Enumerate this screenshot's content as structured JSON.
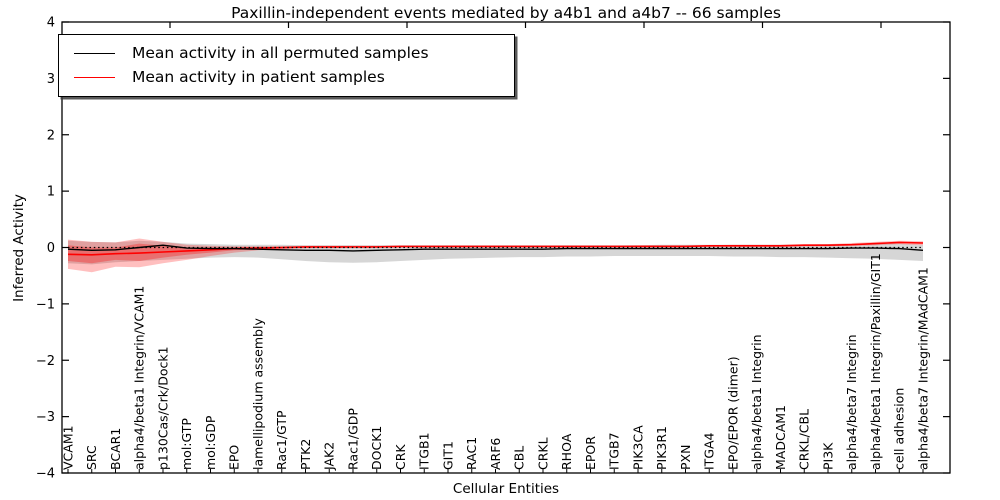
{
  "figure": {
    "title": "Paxillin-independent events mediated by a4b1 and a4b7 -- 66 samples",
    "xlabel": "Cellular Entities",
    "ylabel": "Inferred Activity"
  },
  "legend": {
    "items": [
      {
        "label": "Mean activity in all permuted samples",
        "color": "#000000"
      },
      {
        "label": "Mean activity in patient samples",
        "color": "#ff0000"
      }
    ]
  },
  "chart_data": {
    "type": "line",
    "title": "Paxillin-independent events mediated by a4b1 and a4b7 -- 66 samples",
    "xlabel": "Cellular Entities",
    "ylabel": "Inferred Activity",
    "ylim": [
      -4,
      4
    ],
    "yticks": [
      -4,
      -3,
      -2,
      -1,
      0,
      1,
      2,
      3,
      4
    ],
    "grid": false,
    "legend_position": "upper left",
    "baseline": 0,
    "baseline_style": "dotted",
    "categories": [
      "VCAM1",
      "SRC",
      "BCAR1",
      "alpha4/beta1 Integrin/VCAM1",
      "p130Cas/Crk/Dock1",
      "mol:GTP",
      "mol:GDP",
      "EPO",
      "lamellipodium assembly",
      "Rac1/GTP",
      "PTK2",
      "JAK2",
      "Rac1/GDP",
      "DOCK1",
      "CRK",
      "ITGB1",
      "GIT1",
      "RAC1",
      "ARF6",
      "CBL",
      "CRKL",
      "RHOA",
      "EPOR",
      "ITGB7",
      "PIK3CA",
      "PIK3R1",
      "PXN",
      "ITGA4",
      "EPO/EPOR (dimer)",
      "alpha4/beta1 Integrin",
      "MADCAM1",
      "CRKL/CBL",
      "PI3K",
      "alpha4/beta7 Integrin",
      "alpha4/beta1 Integrin/Paxillin/GIT1",
      "cell adhesion",
      "alpha4/beta7 Integrin/MAdCAM1"
    ],
    "series": [
      {
        "name": "Mean activity in all permuted samples",
        "color": "#000000",
        "style": "solid",
        "values": [
          -0.03,
          -0.05,
          -0.04,
          0.0,
          0.04,
          -0.01,
          -0.02,
          -0.02,
          -0.03,
          -0.04,
          -0.05,
          -0.05,
          -0.06,
          -0.05,
          -0.04,
          -0.03,
          -0.03,
          -0.03,
          -0.03,
          -0.03,
          -0.03,
          -0.02,
          -0.02,
          -0.02,
          -0.02,
          -0.02,
          -0.02,
          -0.02,
          -0.02,
          -0.02,
          -0.02,
          -0.02,
          -0.02,
          -0.01,
          -0.01,
          -0.02,
          -0.05
        ]
      },
      {
        "name": "Mean activity in patient samples",
        "color": "#ff0000",
        "style": "solid",
        "values": [
          -0.12,
          -0.13,
          -0.11,
          -0.1,
          -0.08,
          -0.06,
          -0.04,
          -0.02,
          -0.01,
          0.0,
          0.01,
          0.01,
          0.01,
          0.01,
          0.02,
          0.02,
          0.02,
          0.02,
          0.02,
          0.02,
          0.02,
          0.02,
          0.02,
          0.02,
          0.02,
          0.02,
          0.02,
          0.03,
          0.03,
          0.03,
          0.03,
          0.04,
          0.04,
          0.05,
          0.07,
          0.09,
          0.08
        ]
      }
    ],
    "bands": [
      {
        "name": "permuted-samples-range",
        "color": "#777777",
        "opacity": 0.3,
        "hi": [
          0.12,
          0.1,
          0.09,
          0.12,
          0.1,
          0.07,
          0.06,
          0.05,
          0.05,
          0.05,
          0.04,
          0.04,
          0.04,
          0.04,
          0.04,
          0.04,
          0.04,
          0.04,
          0.04,
          0.04,
          0.04,
          0.04,
          0.04,
          0.04,
          0.04,
          0.05,
          0.05,
          0.05,
          0.05,
          0.05,
          0.05,
          0.05,
          0.06,
          0.06,
          0.08,
          0.07,
          0.05
        ],
        "lo": [
          -0.28,
          -0.3,
          -0.26,
          -0.24,
          -0.22,
          -0.2,
          -0.18,
          -0.17,
          -0.18,
          -0.21,
          -0.24,
          -0.26,
          -0.27,
          -0.26,
          -0.24,
          -0.22,
          -0.2,
          -0.19,
          -0.18,
          -0.17,
          -0.17,
          -0.16,
          -0.16,
          -0.15,
          -0.15,
          -0.15,
          -0.15,
          -0.15,
          -0.16,
          -0.16,
          -0.17,
          -0.17,
          -0.18,
          -0.19,
          -0.2,
          -0.22,
          -0.24
        ]
      },
      {
        "name": "patient-samples-range-outer",
        "color": "#ff0000",
        "opacity": 0.25,
        "hi": [
          0.14,
          0.1,
          0.09,
          0.16,
          0.1,
          0.05,
          0.03,
          0.02,
          0.02,
          0.02,
          0.03,
          0.03,
          0.03,
          0.03,
          0.03,
          0.03,
          0.03,
          0.03,
          0.03,
          0.03,
          0.03,
          0.03,
          0.03,
          0.03,
          0.04,
          0.04,
          0.04,
          0.04,
          0.05,
          0.05,
          0.05,
          0.06,
          0.06,
          0.08,
          0.1,
          0.12,
          0.11
        ],
        "lo": [
          -0.38,
          -0.44,
          -0.34,
          -0.35,
          -0.28,
          -0.22,
          -0.15,
          -0.09,
          -0.05,
          -0.03,
          -0.01,
          -0.01,
          0.0,
          0.0,
          0.0,
          0.0,
          0.0,
          0.0,
          0.0,
          0.0,
          0.0,
          0.0,
          0.01,
          0.01,
          0.01,
          0.01,
          0.01,
          0.01,
          0.01,
          0.01,
          0.01,
          0.02,
          0.02,
          0.03,
          0.04,
          0.06,
          0.04
        ]
      },
      {
        "name": "patient-samples-range-inner",
        "color": "#ff0000",
        "opacity": 0.3,
        "hi": [
          0.04,
          0.0,
          0.0,
          0.07,
          0.03,
          0.0,
          0.0,
          0.0,
          0.01,
          0.01,
          0.02,
          0.02,
          0.02,
          0.02,
          0.02,
          0.02,
          0.03,
          0.03,
          0.03,
          0.03,
          0.03,
          0.03,
          0.03,
          0.03,
          0.03,
          0.03,
          0.03,
          0.03,
          0.04,
          0.04,
          0.04,
          0.05,
          0.05,
          0.06,
          0.08,
          0.1,
          0.09
        ],
        "lo": [
          -0.24,
          -0.28,
          -0.22,
          -0.24,
          -0.18,
          -0.13,
          -0.09,
          -0.05,
          -0.03,
          -0.02,
          0.0,
          0.0,
          0.0,
          0.01,
          0.01,
          0.01,
          0.01,
          0.01,
          0.01,
          0.01,
          0.01,
          0.01,
          0.01,
          0.01,
          0.01,
          0.01,
          0.01,
          0.02,
          0.02,
          0.02,
          0.02,
          0.03,
          0.03,
          0.04,
          0.06,
          0.08,
          0.07
        ]
      }
    ]
  }
}
